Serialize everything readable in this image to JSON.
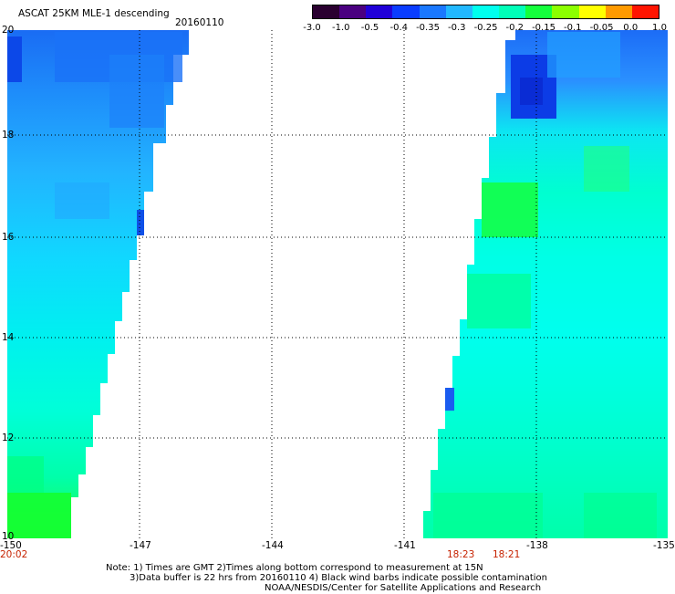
{
  "header": {
    "product": "ASCAT 25KM MLE-1 descending",
    "date": "20160110"
  },
  "colorbar": {
    "tick_labels": [
      "-3.0",
      "-1.0",
      "-0.5",
      "-0.4",
      "-0.35",
      "-0.3",
      "-0.25",
      "-0.2",
      "-0.15",
      "-0.1",
      "-0.05",
      "0.0",
      "1.0"
    ],
    "colors": [
      "#2a0030",
      "#4a0080",
      "#2000d8",
      "#0a3cff",
      "#1a78ff",
      "#22b8ff",
      "#00ffee",
      "#00ffb8",
      "#14ff3c",
      "#8cff00",
      "#ffff00",
      "#ff9a00",
      "#ff1400"
    ]
  },
  "axes": {
    "lat_labels": [
      "20",
      "18",
      "16",
      "14",
      "12",
      "10"
    ],
    "lon_labels": [
      "-150",
      "-147",
      "-144",
      "-141",
      "-138",
      "-135"
    ]
  },
  "time_labels": {
    "left": "20:02",
    "mid1": "18:23",
    "mid2": "18:21"
  },
  "notes": {
    "line1": "Note: 1) Times are GMT 2)Times along bottom correspond to measurement at 15N",
    "line2": "3)Data buffer is 22 hrs from 20160110 4) Black wind barbs indicate possible contamination",
    "line3": "NOAA/NESDIS/Center for Satellite Applications and Research"
  },
  "colors": {
    "background": "#ffffff",
    "grid": "#000000",
    "time_label": "#c62200"
  }
}
